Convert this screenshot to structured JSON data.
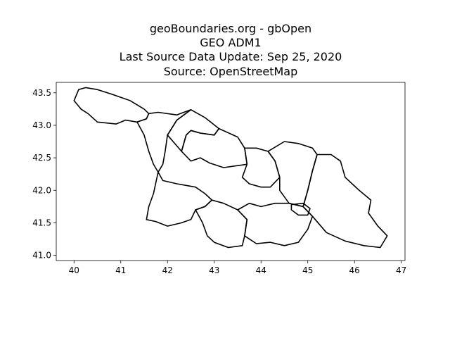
{
  "chart_data": {
    "type": "map",
    "title_lines": [
      "geoBoundaries.org - gbOpen",
      "GEO ADM1",
      "Last Source Data Update: Sep 25, 2020",
      "Source: OpenStreetMap"
    ],
    "xlabel": "",
    "ylabel": "",
    "xlim": [
      39.62,
      47.08
    ],
    "ylim": [
      40.92,
      43.66
    ],
    "x_ticks": [
      40,
      41,
      42,
      43,
      44,
      45,
      46,
      47
    ],
    "y_ticks": [
      41.0,
      41.5,
      42.0,
      42.5,
      43.0,
      43.5
    ],
    "y_tick_labels": [
      "41.0",
      "41.5",
      "42.0",
      "42.5",
      "43.0",
      "43.5"
    ],
    "grid": false,
    "line_color": "#000000",
    "regions": [
      {
        "id": "abkhazia",
        "coords": [
          [
            40.0,
            43.38
          ],
          [
            40.1,
            43.55
          ],
          [
            40.25,
            43.58
          ],
          [
            40.5,
            43.55
          ],
          [
            40.8,
            43.48
          ],
          [
            41.2,
            43.38
          ],
          [
            41.5,
            43.25
          ],
          [
            41.6,
            43.18
          ],
          [
            41.55,
            43.1
          ],
          [
            41.35,
            43.05
          ],
          [
            41.1,
            43.08
          ],
          [
            40.9,
            43.02
          ],
          [
            40.5,
            43.05
          ],
          [
            40.3,
            43.18
          ],
          [
            40.15,
            43.25
          ],
          [
            40.0,
            43.38
          ]
        ]
      },
      {
        "id": "samegrelo-zemo-svaneti",
        "coords": [
          [
            41.6,
            43.18
          ],
          [
            41.8,
            43.2
          ],
          [
            42.2,
            43.16
          ],
          [
            42.5,
            43.24
          ],
          [
            42.2,
            43.08
          ],
          [
            42.0,
            42.85
          ],
          [
            41.95,
            42.6
          ],
          [
            41.9,
            42.4
          ],
          [
            41.8,
            42.28
          ],
          [
            41.7,
            42.4
          ],
          [
            41.6,
            42.6
          ],
          [
            41.5,
            42.85
          ],
          [
            41.35,
            43.05
          ],
          [
            41.55,
            43.1
          ],
          [
            41.6,
            43.18
          ]
        ]
      },
      {
        "id": "racha-lechkhumi",
        "coords": [
          [
            42.5,
            43.24
          ],
          [
            42.8,
            43.12
          ],
          [
            43.1,
            42.95
          ],
          [
            43.0,
            42.85
          ],
          [
            42.7,
            42.88
          ],
          [
            42.5,
            42.92
          ],
          [
            42.4,
            42.85
          ],
          [
            42.3,
            42.6
          ],
          [
            42.0,
            42.85
          ],
          [
            42.2,
            43.08
          ],
          [
            42.5,
            43.24
          ]
        ]
      },
      {
        "id": "imereti",
        "coords": [
          [
            42.3,
            42.6
          ],
          [
            42.4,
            42.85
          ],
          [
            42.5,
            42.92
          ],
          [
            42.7,
            42.88
          ],
          [
            43.0,
            42.85
          ],
          [
            43.1,
            42.95
          ],
          [
            43.5,
            42.82
          ],
          [
            43.65,
            42.65
          ],
          [
            43.7,
            42.4
          ],
          [
            43.5,
            42.38
          ],
          [
            43.2,
            42.35
          ],
          [
            42.9,
            42.42
          ],
          [
            42.7,
            42.5
          ],
          [
            42.5,
            42.45
          ],
          [
            42.3,
            42.6
          ]
        ]
      },
      {
        "id": "guria-adjara",
        "coords": [
          [
            41.8,
            42.28
          ],
          [
            41.9,
            42.15
          ],
          [
            42.2,
            42.1
          ],
          [
            42.6,
            42.05
          ],
          [
            42.8,
            41.95
          ],
          [
            42.95,
            41.85
          ],
          [
            42.8,
            41.75
          ],
          [
            42.6,
            41.7
          ],
          [
            42.5,
            41.55
          ],
          [
            42.3,
            41.5
          ],
          [
            42.0,
            41.45
          ],
          [
            41.75,
            41.52
          ],
          [
            41.55,
            41.55
          ],
          [
            41.6,
            41.75
          ],
          [
            41.7,
            41.95
          ],
          [
            41.8,
            42.28
          ]
        ]
      },
      {
        "id": "samtskhe-javakheti",
        "coords": [
          [
            42.6,
            41.7
          ],
          [
            42.8,
            41.75
          ],
          [
            42.95,
            41.85
          ],
          [
            43.2,
            41.8
          ],
          [
            43.5,
            41.7
          ],
          [
            43.7,
            41.55
          ],
          [
            43.65,
            41.3
          ],
          [
            43.6,
            41.15
          ],
          [
            43.3,
            41.12
          ],
          [
            43.0,
            41.2
          ],
          [
            42.85,
            41.3
          ],
          [
            42.75,
            41.5
          ],
          [
            42.6,
            41.7
          ]
        ]
      },
      {
        "id": "shida-kartli",
        "coords": [
          [
            43.7,
            42.4
          ],
          [
            43.65,
            42.65
          ],
          [
            43.9,
            42.65
          ],
          [
            44.15,
            42.6
          ],
          [
            44.3,
            42.45
          ],
          [
            44.4,
            42.2
          ],
          [
            44.2,
            42.05
          ],
          [
            44.0,
            42.05
          ],
          [
            43.75,
            42.1
          ],
          [
            43.6,
            42.2
          ],
          [
            43.7,
            42.4
          ]
        ]
      },
      {
        "id": "mtskheta-mtianeti",
        "coords": [
          [
            44.3,
            42.45
          ],
          [
            44.15,
            42.6
          ],
          [
            44.5,
            42.75
          ],
          [
            44.8,
            42.72
          ],
          [
            45.1,
            42.65
          ],
          [
            45.2,
            42.55
          ],
          [
            45.1,
            42.3
          ],
          [
            45.0,
            42.0
          ],
          [
            44.9,
            41.75
          ],
          [
            44.6,
            41.8
          ],
          [
            44.4,
            42.0
          ],
          [
            44.4,
            42.2
          ],
          [
            44.3,
            42.45
          ]
        ]
      },
      {
        "id": "kvemo-kartli",
        "coords": [
          [
            43.7,
            41.55
          ],
          [
            43.5,
            41.7
          ],
          [
            43.75,
            41.8
          ],
          [
            44.0,
            41.75
          ],
          [
            44.3,
            41.8
          ],
          [
            44.6,
            41.8
          ],
          [
            44.9,
            41.75
          ],
          [
            45.1,
            41.6
          ],
          [
            45.0,
            41.4
          ],
          [
            44.8,
            41.2
          ],
          [
            44.5,
            41.15
          ],
          [
            44.2,
            41.2
          ],
          [
            43.9,
            41.18
          ],
          [
            43.65,
            41.3
          ],
          [
            43.7,
            41.55
          ]
        ]
      },
      {
        "id": "tbilisi",
        "coords": [
          [
            44.65,
            41.78
          ],
          [
            44.9,
            41.8
          ],
          [
            45.05,
            41.72
          ],
          [
            45.0,
            41.62
          ],
          [
            44.8,
            41.62
          ],
          [
            44.65,
            41.7
          ],
          [
            44.65,
            41.78
          ]
        ]
      },
      {
        "id": "kakheti",
        "coords": [
          [
            45.2,
            42.55
          ],
          [
            45.5,
            42.55
          ],
          [
            45.7,
            42.45
          ],
          [
            45.8,
            42.2
          ],
          [
            46.1,
            42.0
          ],
          [
            46.35,
            41.85
          ],
          [
            46.3,
            41.65
          ],
          [
            46.5,
            41.45
          ],
          [
            46.7,
            41.3
          ],
          [
            46.55,
            41.12
          ],
          [
            46.2,
            41.15
          ],
          [
            45.8,
            41.22
          ],
          [
            45.4,
            41.35
          ],
          [
            45.1,
            41.6
          ],
          [
            44.9,
            41.75
          ],
          [
            45.0,
            42.0
          ],
          [
            45.1,
            42.3
          ],
          [
            45.2,
            42.55
          ]
        ]
      }
    ]
  }
}
